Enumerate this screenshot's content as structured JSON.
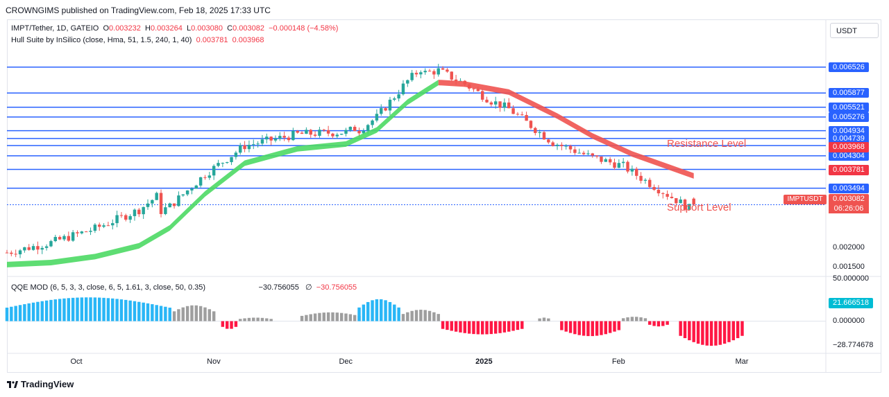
{
  "publisher": "CROWNGIMS published on TradingView.com, Feb 18, 2025 17:33 UTC",
  "symbol_legend": {
    "name": "IMPT/Tether, 1D, GATEIO",
    "o_label": "O",
    "o": "0.003232",
    "h_label": "H",
    "h": "0.003264",
    "l_label": "L",
    "l": "0.003080",
    "c_label": "C",
    "c": "0.003082",
    "chg": "−0.000148 (−4.58%)"
  },
  "indicator_legend": {
    "name": "Hull Suite by InSilico (close, Hma, 51, 1.5, 240, 1, 40)",
    "v1": "0.003781",
    "v2": "0.003968"
  },
  "oscillator_legend": {
    "name": "QQE MOD (6, 5, 3, 3, close, 6, 5, 1.61, 3, close, 50, 0.35)",
    "v1": "−30.756055",
    "sym": "∅",
    "v2": "−30.756055"
  },
  "currency": "USDT",
  "price_axis": [
    "0.006526",
    "0.005877",
    "0.005521",
    "0.005276",
    "0.004934",
    "0.004739",
    "0.004560",
    "0.004304",
    "0.003963",
    "0.003494",
    "0.003078",
    "0.002000",
    "0.001500"
  ],
  "price_tags": {
    "hull_upper": "0.003968",
    "hull_lower": "0.003781",
    "last": "0.003082",
    "countdown": "06:26:06",
    "symbol": "IMPTUSDT"
  },
  "osc_axis": {
    "top": "50.000000",
    "current": "21.666518",
    "zero": "0.000000",
    "min": "−28.774678"
  },
  "annotations": {
    "resistance": "Resistance Level",
    "support": "Support Level"
  },
  "time_axis": [
    {
      "label": "Oct",
      "bold": false
    },
    {
      "label": "Nov",
      "bold": false
    },
    {
      "label": "Dec",
      "bold": false
    },
    {
      "label": "2025",
      "bold": true
    },
    {
      "label": "Feb",
      "bold": false
    },
    {
      "label": "Mar",
      "bold": false
    }
  ],
  "branding": "TradingView",
  "colors": {
    "up": "#26a69a",
    "down": "#ef5350",
    "hull_up": "#4cd964",
    "hull_down": "#ef5350",
    "level_line": "#2962ff",
    "qqe_up": "#29b6f6",
    "qqe_down": "#ff1744",
    "qqe_neutral": "#9e9e9e"
  },
  "chart_data": [
    {
      "type": "candlestick",
      "title": "IMPT/Tether, 1D, GATEIO",
      "x_range": [
        "2024-09-15",
        "2025-03-20"
      ],
      "y_range": [
        0.0013,
        0.0072
      ],
      "horizontal_levels": [
        0.006526,
        0.005877,
        0.005521,
        0.005276,
        0.004934,
        0.004739,
        0.00456,
        0.004304,
        0.003963,
        0.003494,
        0.003078
      ],
      "hull_line": {
        "points": [
          {
            "x": "2024-09-15",
            "y": 0.00158
          },
          {
            "x": "2024-09-25",
            "y": 0.00163
          },
          {
            "x": "2024-10-05",
            "y": 0.00178
          },
          {
            "x": "2024-10-15",
            "y": 0.00205
          },
          {
            "x": "2024-10-22",
            "y": 0.0025
          },
          {
            "x": "2024-10-30",
            "y": 0.00335
          },
          {
            "x": "2024-11-08",
            "y": 0.00412
          },
          {
            "x": "2024-11-20",
            "y": 0.00448
          },
          {
            "x": "2024-12-01",
            "y": 0.0046
          },
          {
            "x": "2024-12-08",
            "y": 0.00495
          },
          {
            "x": "2024-12-15",
            "y": 0.00565
          },
          {
            "x": "2024-12-22",
            "y": 0.00614
          },
          {
            "x": "2024-12-28",
            "y": 0.0061
          },
          {
            "x": "2025-01-07",
            "y": 0.0059
          },
          {
            "x": "2025-01-18",
            "y": 0.0053
          },
          {
            "x": "2025-01-26",
            "y": 0.0048
          },
          {
            "x": "2025-02-04",
            "y": 0.00435
          },
          {
            "x": "2025-02-18",
            "y": 0.0038
          }
        ]
      },
      "candles_summary": {
        "last_open": 0.003232,
        "last_high": 0.003264,
        "last_low": 0.00308,
        "last_close": 0.003082
      }
    },
    {
      "type": "bar",
      "title": "QQE MOD (6, 5, 3, 3, close, 6, 5, 1.61, 3, close, 50, 0.35)",
      "y_range": [
        -35,
        50
      ],
      "segments": [
        {
          "from": "2024-09-15",
          "to": "2024-10-22",
          "state": "up",
          "peak": 27
        },
        {
          "from": "2024-10-23",
          "to": "2024-11-01",
          "state": "neutral",
          "peak": 18
        },
        {
          "from": "2024-11-03",
          "to": "2024-11-06",
          "state": "down",
          "peak": -9
        },
        {
          "from": "2024-11-07",
          "to": "2024-11-14",
          "state": "neutral",
          "peak": 4
        },
        {
          "from": "2024-11-21",
          "to": "2024-12-04",
          "state": "neutral",
          "peak": 10
        },
        {
          "from": "2024-12-04",
          "to": "2024-12-13",
          "state": "up",
          "peak": 25
        },
        {
          "from": "2024-12-14",
          "to": "2024-12-22",
          "state": "neutral",
          "peak": 13
        },
        {
          "from": "2024-12-23",
          "to": "2025-01-10",
          "state": "down",
          "peak": -15
        },
        {
          "from": "2025-01-14",
          "to": "2025-01-16",
          "state": "neutral",
          "peak": 4
        },
        {
          "from": "2025-01-19",
          "to": "2025-02-01",
          "state": "down",
          "peak": -17
        },
        {
          "from": "2025-02-02",
          "to": "2025-02-07",
          "state": "neutral",
          "peak": 5
        },
        {
          "from": "2025-02-08",
          "to": "2025-02-12",
          "state": "down",
          "peak": -6
        },
        {
          "from": "2025-02-15",
          "to": "2025-03-01",
          "state": "down",
          "peak": -28
        }
      ]
    }
  ]
}
